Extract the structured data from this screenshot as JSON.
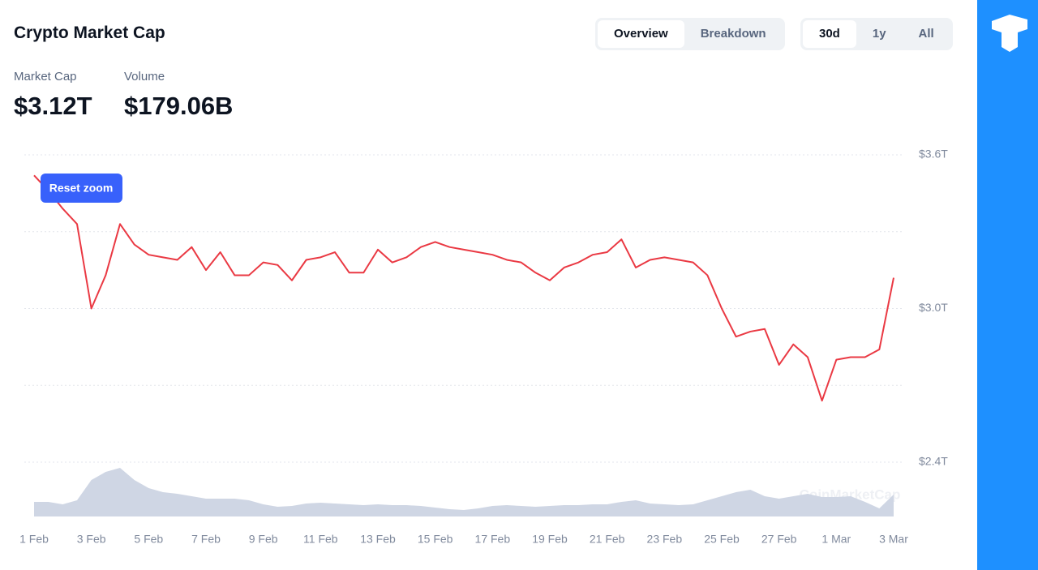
{
  "chart_data": {
    "type": "line",
    "title": "Crypto Market Cap",
    "categories": [
      "1 Feb",
      null,
      null,
      null,
      "3 Feb",
      null,
      null,
      null,
      "5 Feb",
      null,
      null,
      null,
      "7 Feb",
      null,
      null,
      null,
      "9 Feb",
      null,
      null,
      null,
      "11 Feb",
      null,
      null,
      null,
      "13 Feb",
      null,
      null,
      null,
      "15 Feb",
      null,
      null,
      null,
      "17 Feb",
      null,
      null,
      null,
      "19 Feb",
      null,
      null,
      null,
      "21 Feb",
      null,
      null,
      null,
      "23 Feb",
      null,
      null,
      null,
      "25 Feb",
      null,
      null,
      null,
      "27 Feb",
      null,
      null,
      null,
      "1 Mar",
      null,
      null,
      null,
      "3 Mar"
    ],
    "series": [
      {
        "name": "Market Cap",
        "color": "#ea3943",
        "values": [
          3.52,
          3.46,
          3.39,
          3.33,
          3.0,
          3.13,
          3.33,
          3.25,
          3.21,
          3.2,
          3.19,
          3.24,
          3.15,
          3.22,
          3.13,
          3.13,
          3.18,
          3.17,
          3.11,
          3.19,
          3.2,
          3.22,
          3.14,
          3.14,
          3.23,
          3.18,
          3.2,
          3.24,
          3.26,
          3.24,
          3.23,
          3.22,
          3.21,
          3.19,
          3.18,
          3.14,
          3.11,
          3.16,
          3.18,
          3.21,
          3.22,
          3.27,
          3.16,
          3.19,
          3.2,
          3.19,
          3.18,
          3.13,
          3.0,
          2.89,
          2.91,
          2.92,
          2.78,
          2.86,
          2.81,
          2.64,
          2.8,
          2.81,
          2.81,
          2.84,
          3.12
        ]
      },
      {
        "name": "Volume",
        "color": "#cfd6e4",
        "axis": "y2",
        "values": [
          119,
          119,
          99,
          132,
          297,
          363,
          396,
          297,
          231,
          198,
          185,
          165,
          145,
          145,
          145,
          132,
          99,
          79,
          86,
          106,
          112,
          106,
          99,
          92,
          99,
          92,
          92,
          86,
          73,
          59,
          53,
          66,
          86,
          92,
          86,
          79,
          86,
          92,
          92,
          99,
          99,
          119,
          132,
          106,
          99,
          92,
          99,
          132,
          165,
          198,
          218,
          165,
          145,
          165,
          185,
          158,
          158,
          165,
          119,
          66,
          179
        ]
      }
    ],
    "ylim": [
      2.4,
      3.6
    ],
    "yticks": [
      {
        "value": 2.4,
        "label": "$2.4T"
      },
      {
        "value": 3.0,
        "label": "$3.0T"
      },
      {
        "value": 3.6,
        "label": "$3.6T"
      }
    ],
    "minor_yticks": [
      2.7,
      3.3
    ],
    "y2lim": [
      0,
      660
    ],
    "grid": true
  },
  "stats": [
    {
      "label": "Market Cap",
      "value": "$3.12T"
    },
    {
      "label": "Volume",
      "value": "$179.06B"
    }
  ],
  "tabs": [
    "Overview",
    "Breakdown"
  ],
  "active_tab": "Overview",
  "ranges": [
    "30d",
    "1y",
    "All"
  ],
  "active_range": "30d",
  "reset_zoom": "Reset zoom",
  "watermark": "CoinMarketCap"
}
